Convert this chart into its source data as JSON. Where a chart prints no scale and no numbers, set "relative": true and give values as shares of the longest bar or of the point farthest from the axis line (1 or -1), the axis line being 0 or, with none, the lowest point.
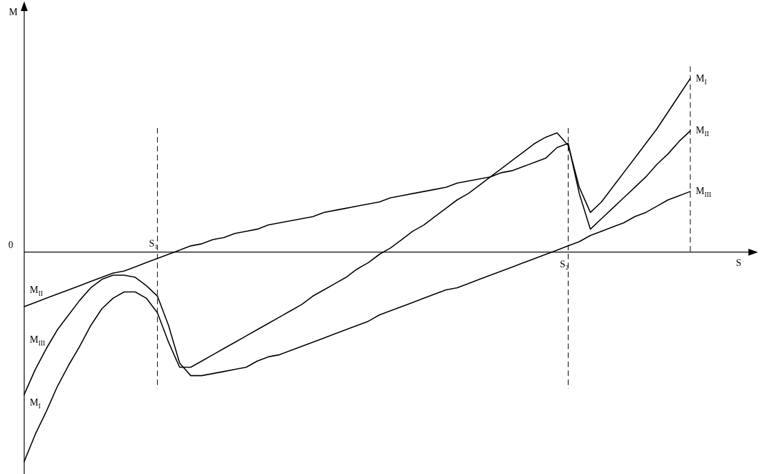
{
  "chart_data": {
    "type": "line",
    "relative": true,
    "xlabel": "S",
    "annotations": [
      "M",
      "0"
    ],
    "legend": false,
    "marker": "none",
    "line_style": "solid",
    "categories": [
      null,
      null,
      null,
      null,
      null,
      null,
      null,
      null,
      null,
      null,
      null,
      null,
      "S₁",
      null,
      null,
      null,
      null,
      null,
      null,
      null,
      null,
      null,
      null,
      null,
      null,
      null,
      null,
      null,
      null,
      null,
      null,
      null,
      null,
      null,
      null,
      null,
      null,
      null,
      null,
      null,
      null,
      null,
      null,
      null,
      null,
      null,
      null,
      null,
      null,
      "S₂",
      null,
      null,
      null,
      null,
      null,
      null,
      null,
      null,
      null,
      null,
      null
    ],
    "ref_lines": [
      {
        "axis": "x",
        "value": "S₁",
        "line_style": "dashed"
      },
      {
        "axis": "x",
        "value": "S₂",
        "line_style": "dashed"
      },
      {
        "axis": "x",
        "line_style": "dashed"
      }
    ],
    "series": [
      {
        "name": "M$_{I}$",
        "color": "#000000",
        "values": [
          -1.0,
          -0.87,
          -0.76,
          -0.64,
          -0.54,
          -0.45,
          -0.35,
          -0.27,
          -0.22,
          -0.19,
          -0.19,
          -0.22,
          -0.29,
          -0.43,
          -0.55,
          -0.55,
          -0.52,
          -0.49,
          -0.46,
          -0.43,
          -0.4,
          -0.37,
          -0.34,
          -0.31,
          -0.28,
          -0.25,
          -0.21,
          -0.18,
          -0.15,
          -0.12,
          -0.08,
          -0.05,
          -0.01,
          0.02,
          0.06,
          0.1,
          0.13,
          0.17,
          0.21,
          0.25,
          0.28,
          0.32,
          0.36,
          0.4,
          0.44,
          0.48,
          0.52,
          0.55,
          0.57,
          0.51,
          0.31,
          0.19,
          0.24,
          0.31,
          0.38,
          0.45,
          0.52,
          0.59,
          0.67,
          0.75,
          0.83
        ]
      },
      {
        "name": "M$_{II}$",
        "color": "#000000",
        "values": [
          -0.26,
          -0.24,
          -0.22,
          -0.2,
          -0.18,
          -0.16,
          -0.14,
          -0.12,
          -0.1,
          -0.09,
          -0.07,
          -0.05,
          -0.03,
          -0.01,
          0.01,
          0.03,
          0.04,
          0.06,
          0.07,
          0.09,
          0.1,
          0.11,
          0.13,
          0.14,
          0.15,
          0.16,
          0.17,
          0.19,
          0.2,
          0.21,
          0.22,
          0.23,
          0.24,
          0.26,
          0.27,
          0.28,
          0.29,
          0.3,
          0.31,
          0.33,
          0.34,
          0.35,
          0.36,
          0.38,
          0.39,
          0.41,
          0.43,
          0.45,
          0.5,
          0.52,
          0.28,
          0.11,
          0.16,
          0.21,
          0.26,
          0.31,
          0.36,
          0.42,
          0.47,
          0.53,
          0.58
        ]
      },
      {
        "name": "M$_{III}$",
        "color": "#000000",
        "values": [
          -0.68,
          -0.56,
          -0.46,
          -0.37,
          -0.3,
          -0.23,
          -0.17,
          -0.13,
          -0.11,
          -0.11,
          -0.12,
          -0.16,
          -0.21,
          -0.35,
          -0.53,
          -0.59,
          -0.59,
          -0.58,
          -0.57,
          -0.56,
          -0.55,
          -0.52,
          -0.5,
          -0.49,
          -0.47,
          -0.45,
          -0.43,
          -0.41,
          -0.39,
          -0.37,
          -0.35,
          -0.33,
          -0.3,
          -0.28,
          -0.26,
          -0.24,
          -0.22,
          -0.2,
          -0.18,
          -0.17,
          -0.15,
          -0.13,
          -0.11,
          -0.09,
          -0.07,
          -0.05,
          -0.03,
          -0.01,
          0.01,
          0.03,
          0.05,
          0.08,
          0.1,
          0.12,
          0.14,
          0.17,
          0.19,
          0.22,
          0.25,
          0.27,
          0.29
        ]
      }
    ]
  }
}
